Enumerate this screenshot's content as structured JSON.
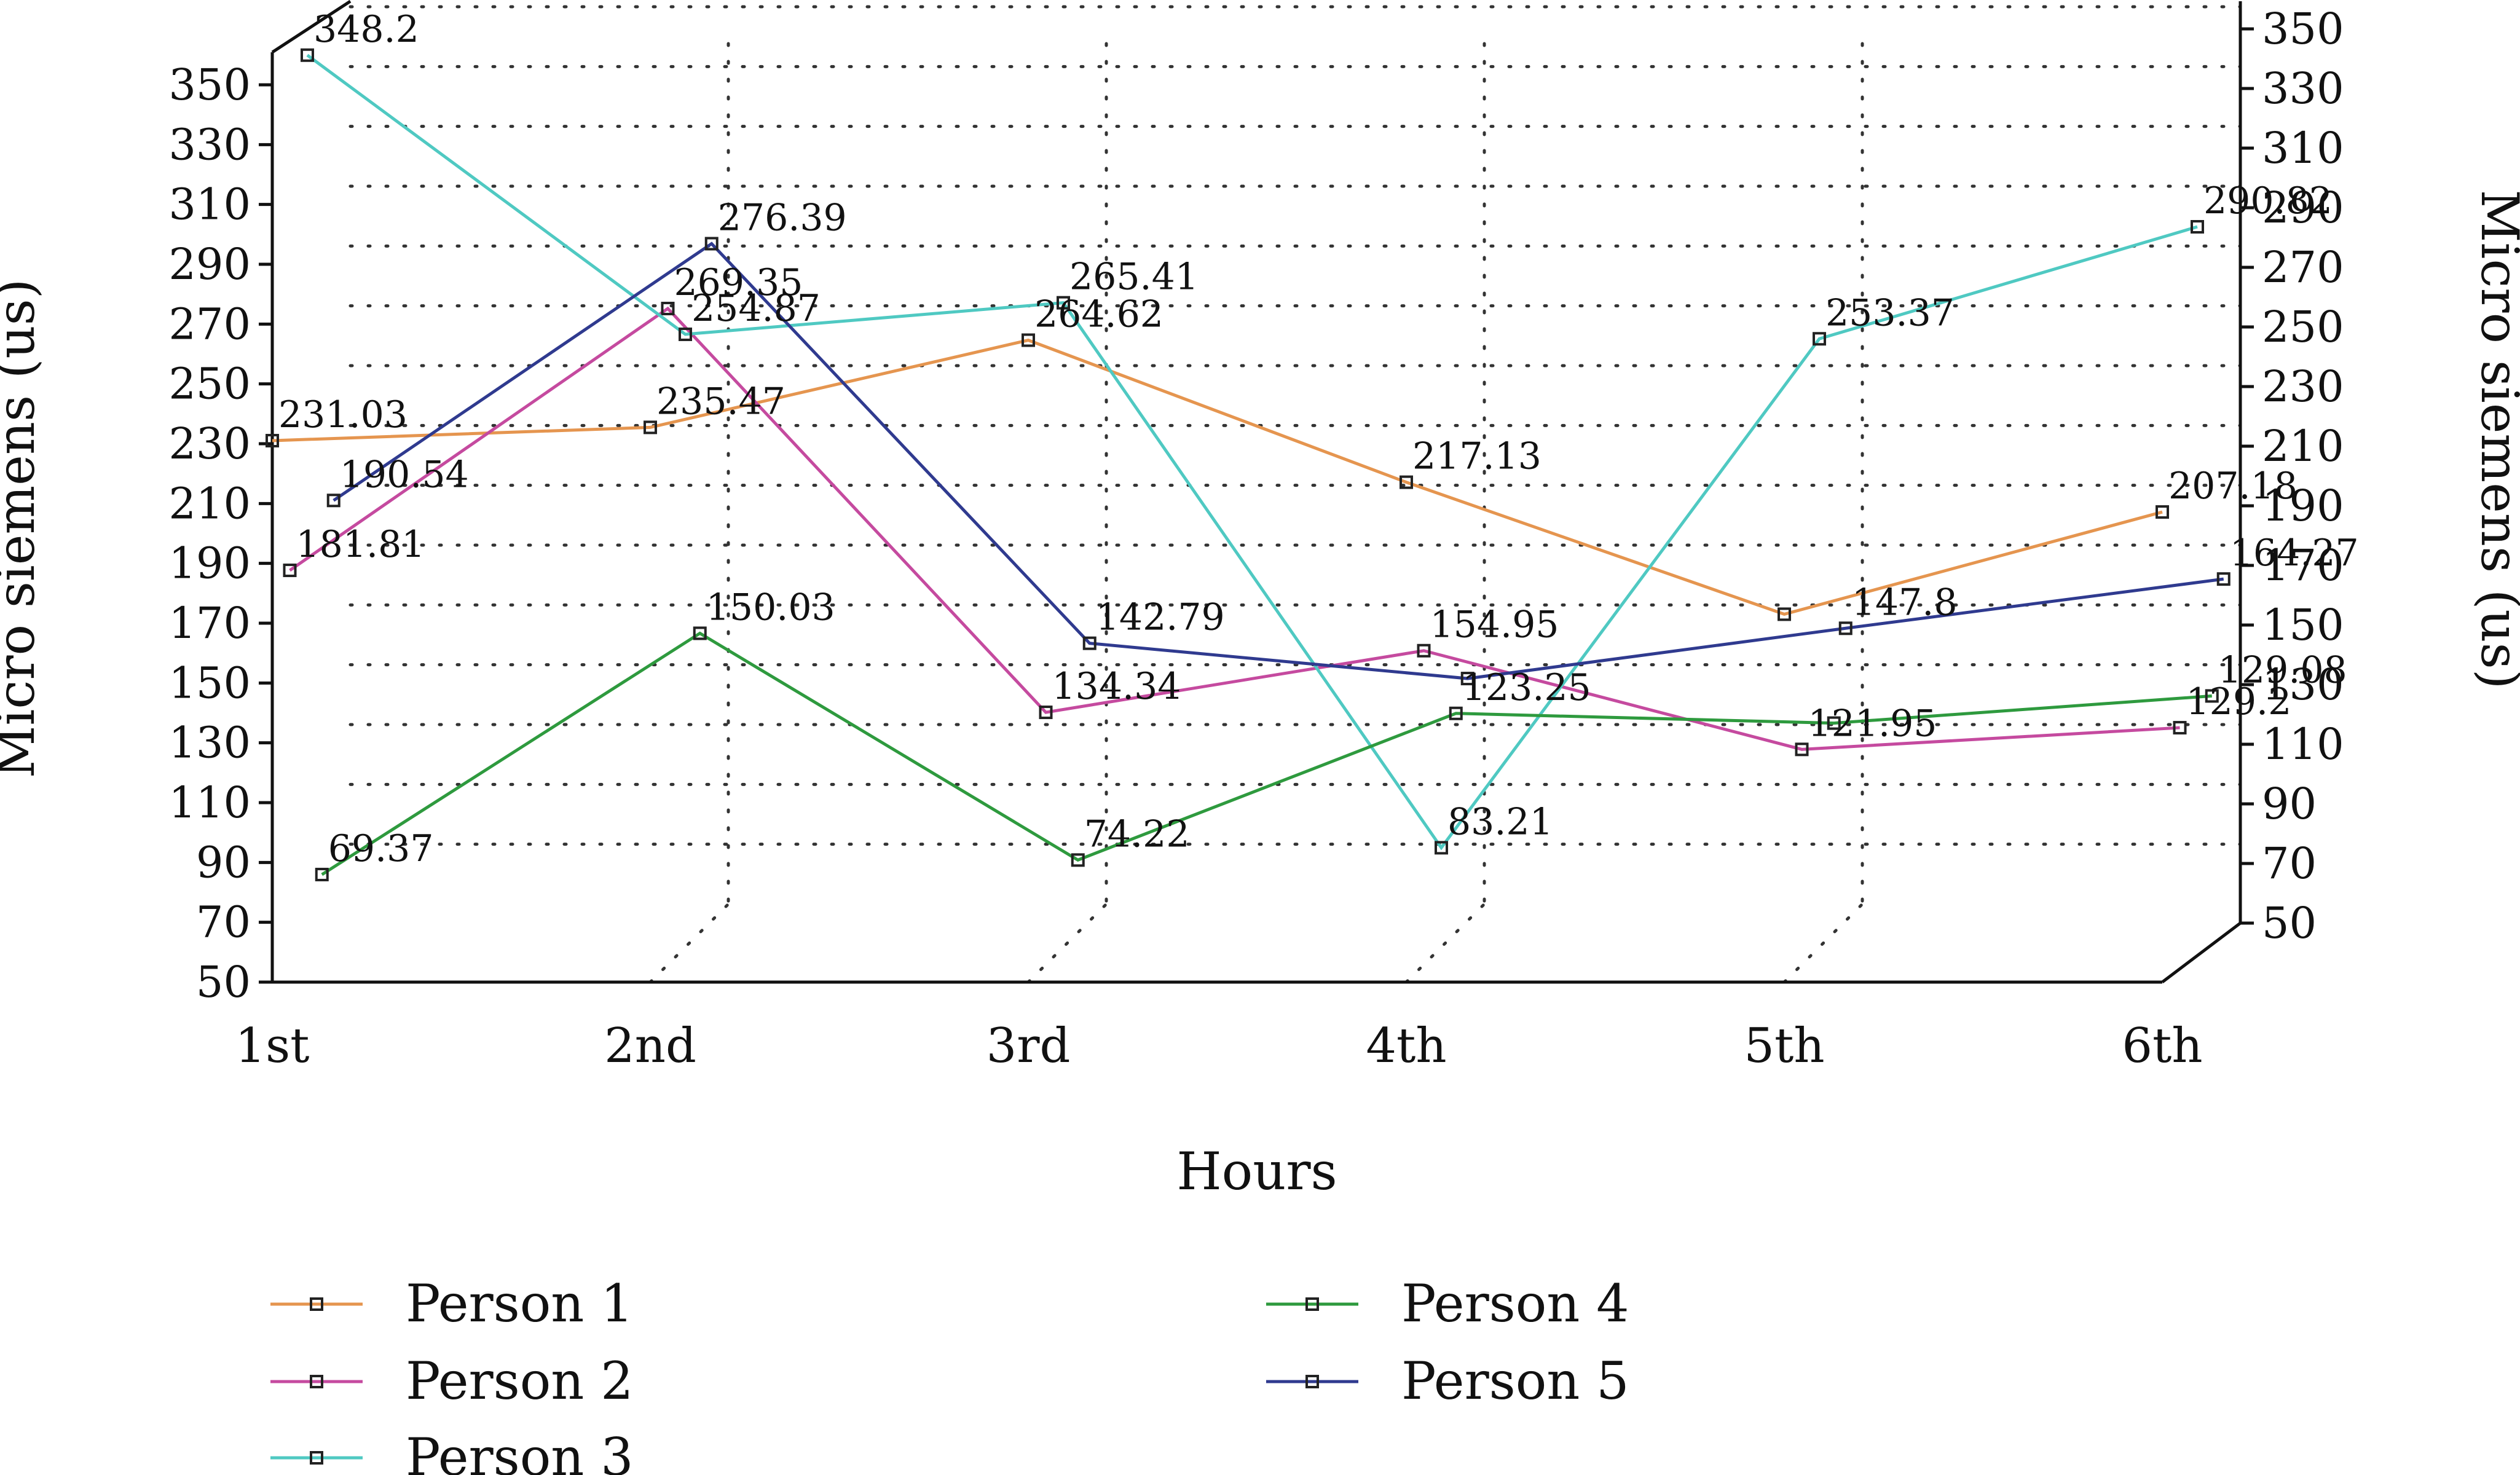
{
  "chart_data": {
    "type": "line",
    "xlabel": "Hours",
    "ylabel_left": "Micro siemens (us)",
    "ylabel_right": "Micro siemens (us)",
    "categories": [
      "1st",
      "2nd",
      "3rd",
      "4th",
      "5th",
      "6th"
    ],
    "y_ticks_left": [
      50,
      70,
      90,
      110,
      130,
      150,
      170,
      190,
      210,
      230,
      250,
      270,
      290,
      310,
      330,
      350
    ],
    "y_ticks_right": [
      50,
      70,
      90,
      110,
      130,
      150,
      170,
      190,
      210,
      230,
      250,
      270,
      290,
      310,
      330,
      350
    ],
    "ylim": [
      50,
      350
    ],
    "grid": true,
    "legend_position": "bottom",
    "series": [
      {
        "name": "Person 1",
        "color": "#E5954F",
        "values": [
          231.03,
          235.47,
          264.62,
          217.13,
          173.0,
          207.18
        ],
        "labels": [
          "231.03",
          "235.47",
          "264.62",
          "217.13",
          "",
          "207.18"
        ]
      },
      {
        "name": "Person 2",
        "color": "#C54A9F",
        "values": [
          181.81,
          269.35,
          134.34,
          154.95,
          121.95,
          129.2
        ],
        "labels": [
          "181.81",
          "269.35",
          "134.34",
          "154.95",
          "121.95",
          "129.2"
        ]
      },
      {
        "name": "Person 3",
        "color": "#4FC9C2",
        "values": [
          348.2,
          254.87,
          265.41,
          83.21,
          253.37,
          290.82
        ],
        "labels": [
          "348.2",
          "254.87",
          "265.41",
          "83.21",
          "253.37",
          "290.82"
        ]
      },
      {
        "name": "Person 4",
        "color": "#2E9A3E",
        "values": [
          69.37,
          150.03,
          74.22,
          123.25,
          120.0,
          129.08
        ],
        "labels": [
          "69.37",
          "150.03",
          "74.22",
          "123.25",
          "",
          "129.08"
        ]
      },
      {
        "name": "Person 5",
        "color": "#2F3A8F",
        "values": [
          190.54,
          276.39,
          142.79,
          131.0,
          147.8,
          164.27
        ],
        "labels": [
          "190.54",
          "276.39",
          "142.79",
          "",
          "147.8",
          "164.27"
        ]
      }
    ]
  }
}
